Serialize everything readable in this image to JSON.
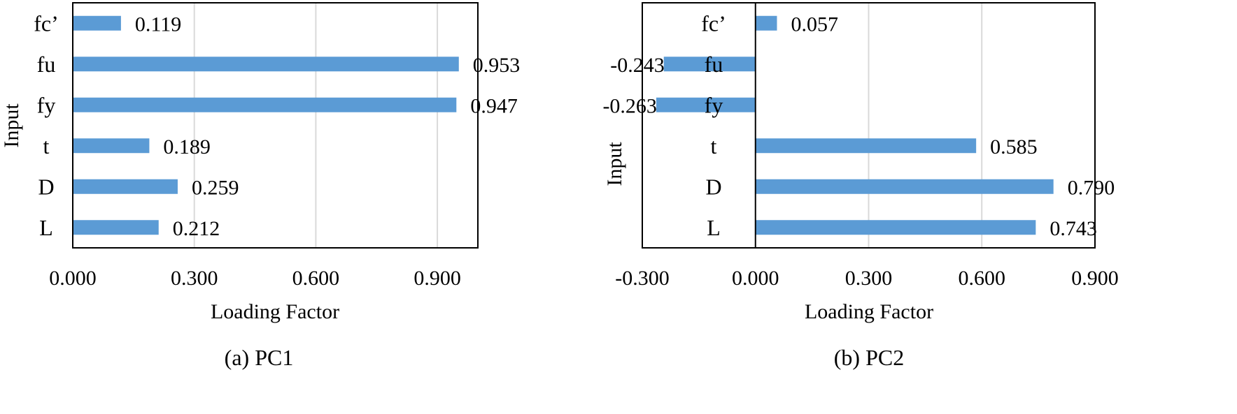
{
  "colors": {
    "bar": "#5b9bd5",
    "grid": "#d9d9d9",
    "frame": "#000000"
  },
  "chart_data": [
    {
      "type": "bar",
      "orientation": "horizontal",
      "caption": "(a) PC1",
      "xlabel": "Loading Factor",
      "ylabel": "Input",
      "categories": [
        "fc’",
        "fu",
        "fy",
        "t",
        "D",
        "L"
      ],
      "values": [
        0.119,
        0.953,
        0.947,
        0.189,
        0.259,
        0.212
      ],
      "data_labels": [
        "0.119",
        "0.953",
        "0.947",
        "0.189",
        "0.259",
        "0.212"
      ],
      "xlim": [
        0,
        1
      ],
      "xticks": [
        0,
        0.3,
        0.6,
        0.9
      ],
      "xtick_labels": [
        "0.000",
        "0.300",
        "0.600",
        "0.900"
      ],
      "grid": true
    },
    {
      "type": "bar",
      "orientation": "horizontal",
      "caption": "(b) PC2",
      "xlabel": "Loading Factor",
      "ylabel": "Input",
      "categories": [
        "fc’",
        "fu",
        "fy",
        "t",
        "D",
        "L"
      ],
      "values": [
        0.057,
        -0.243,
        -0.263,
        0.585,
        0.79,
        0.743
      ],
      "data_labels": [
        "0.057",
        "-0.243",
        "-0.263",
        "0.585",
        "0.790",
        "0.743"
      ],
      "xlim": [
        -0.3,
        0.9
      ],
      "xticks": [
        -0.3,
        0,
        0.3,
        0.6,
        0.9
      ],
      "xtick_labels": [
        "-0.300",
        "0.000",
        "0.300",
        "0.600",
        "0.900"
      ],
      "grid": true
    }
  ]
}
